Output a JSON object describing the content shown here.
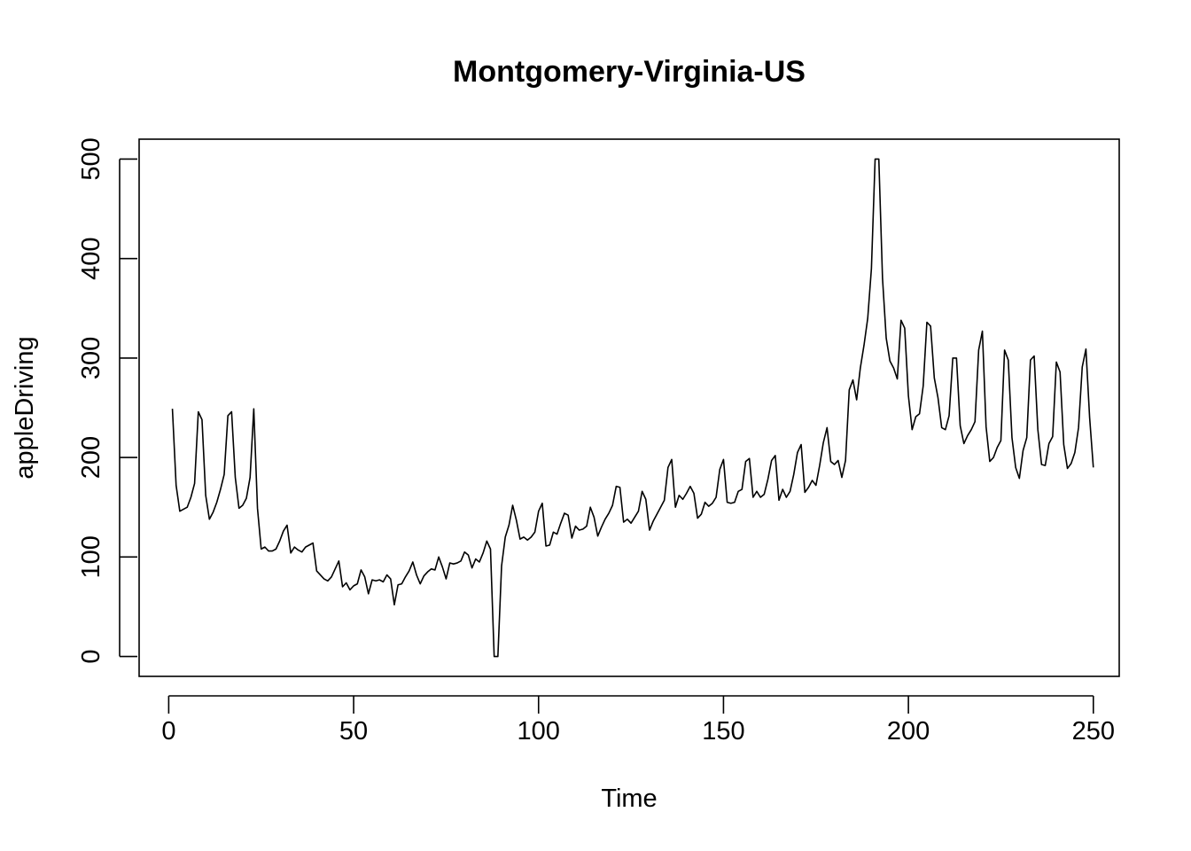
{
  "chart_data": {
    "type": "line",
    "title": "Montgomery-Virginia-US",
    "xlabel": "Time",
    "ylabel": "appleDriving",
    "xlim": [
      -8,
      257
    ],
    "ylim": [
      -20,
      520
    ],
    "x_ticks": [
      0,
      50,
      100,
      150,
      200,
      250
    ],
    "y_ticks": [
      0,
      100,
      200,
      300,
      400,
      500
    ],
    "x_tick_labels": [
      "0",
      "50",
      "100",
      "150",
      "200",
      "250"
    ],
    "y_tick_labels": [
      "0",
      "100",
      "200",
      "300",
      "400",
      "500"
    ],
    "grid": false,
    "legend": "none",
    "line_color": "#000000",
    "series": [
      {
        "x_start": 1,
        "x_step": 1,
        "values": [
          249,
          172,
          146,
          148,
          150,
          160,
          174,
          246,
          238,
          162,
          138,
          145,
          155,
          168,
          183,
          242,
          246,
          180,
          149,
          152,
          159,
          180,
          249,
          149,
          108,
          110,
          106,
          106,
          108,
          116,
          126,
          132,
          104,
          110,
          107,
          105,
          110,
          112,
          114,
          86,
          82,
          78,
          76,
          80,
          88,
          96,
          70,
          74,
          67,
          71,
          73,
          87,
          80,
          63,
          77,
          76,
          77,
          75,
          82,
          78,
          52,
          72,
          73,
          80,
          86,
          95,
          82,
          73,
          81,
          85,
          88,
          87,
          100,
          90,
          78,
          94,
          93,
          94,
          96,
          105,
          102,
          89,
          98,
          95,
          104,
          116,
          108,
          0,
          0,
          91,
          120,
          132,
          152,
          137,
          118,
          120,
          117,
          120,
          125,
          146,
          154,
          111,
          112,
          125,
          123,
          134,
          144,
          142,
          119,
          131,
          127,
          128,
          131,
          150,
          140,
          121,
          130,
          138,
          144,
          152,
          171,
          170,
          135,
          138,
          134,
          140,
          146,
          166,
          158,
          127,
          136,
          143,
          150,
          157,
          190,
          198,
          150,
          162,
          158,
          164,
          171,
          164,
          139,
          143,
          155,
          151,
          154,
          160,
          188,
          198,
          155,
          154,
          155,
          166,
          168,
          196,
          199,
          160,
          166,
          160,
          163,
          178,
          197,
          202,
          157,
          168,
          160,
          166,
          183,
          205,
          213,
          165,
          170,
          177,
          172,
          192,
          215,
          230,
          196,
          193,
          197,
          180,
          197,
          268,
          278,
          258,
          290,
          313,
          340,
          390,
          500,
          500,
          380,
          320,
          297,
          290,
          279,
          338,
          330,
          262,
          228,
          241,
          244,
          272,
          336,
          332,
          280,
          260,
          230,
          228,
          242,
          300,
          300,
          232,
          214,
          222,
          228,
          236,
          308,
          327,
          231,
          196,
          200,
          210,
          217,
          308,
          298,
          220,
          190,
          179,
          207,
          220,
          298,
          302,
          228,
          193,
          192,
          214,
          221,
          296,
          286,
          213,
          189,
          194,
          205,
          230,
          291,
          309,
          240,
          190
        ]
      }
    ]
  }
}
